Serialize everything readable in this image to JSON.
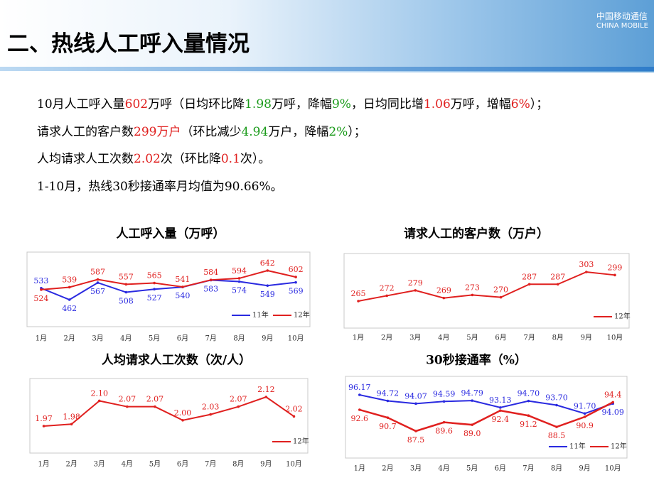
{
  "header": {
    "title": "二、热线人工呼入量情况",
    "logo_cn": "中国移动通信",
    "logo_en": "CHINA MOBILE"
  },
  "paragraphs": [
    {
      "segments": [
        {
          "text": "10月人工呼入量",
          "color": "#000000"
        },
        {
          "text": "602",
          "color": "#e0201f"
        },
        {
          "text": "万呼（日均环比降",
          "color": "#000000"
        },
        {
          "text": "1.98",
          "color": "#1a9a1a"
        },
        {
          "text": "万呼，降幅",
          "color": "#000000"
        },
        {
          "text": "9%",
          "color": "#1a9a1a"
        },
        {
          "text": "，日均同比增",
          "color": "#000000"
        },
        {
          "text": "1.06",
          "color": "#e0201f"
        },
        {
          "text": "万呼，增幅",
          "color": "#000000"
        },
        {
          "text": "6%",
          "color": "#e0201f"
        },
        {
          "text": "）；",
          "color": "#000000"
        }
      ]
    },
    {
      "segments": [
        {
          "text": "请求人工的客户数",
          "color": "#000000"
        },
        {
          "text": "299万户",
          "color": "#e0201f"
        },
        {
          "text": "（环比减少",
          "color": "#000000"
        },
        {
          "text": "4.94",
          "color": "#1a9a1a"
        },
        {
          "text": "万户，降幅",
          "color": "#000000"
        },
        {
          "text": "2%",
          "color": "#1a9a1a"
        },
        {
          "text": "）；",
          "color": "#000000"
        }
      ]
    },
    {
      "segments": [
        {
          "text": "人均请求人工次数",
          "color": "#000000"
        },
        {
          "text": "2.02",
          "color": "#e0201f"
        },
        {
          "text": "次（环比降",
          "color": "#000000"
        },
        {
          "text": "0.1",
          "color": "#e0201f"
        },
        {
          "text": "次）。",
          "color": "#000000"
        }
      ]
    },
    {
      "segments": [
        {
          "text": "1-10月，热线30秒接通率月均值为90.66%。",
          "color": "#000000"
        }
      ]
    }
  ],
  "chart_data": [
    {
      "type": "line",
      "title": "人工呼入量（万呼）",
      "legend": "lower right",
      "categories": [
        "1月",
        "2月",
        "3月",
        "4月",
        "5月",
        "6月",
        "7月",
        "8月",
        "9月",
        "10月"
      ],
      "series": [
        {
          "name": "11年",
          "color": "#2a2ae0",
          "values": [
            533,
            462,
            567,
            508,
            527,
            540,
            583,
            574,
            549,
            569
          ]
        },
        {
          "name": "12年",
          "color": "#e0201f",
          "values": [
            524,
            539,
            587,
            557,
            565,
            541,
            584,
            594,
            642,
            602
          ]
        }
      ]
    },
    {
      "type": "line",
      "title": "请求人工的客户数（万户）",
      "legend": "lower right",
      "categories": [
        "1月",
        "2月",
        "3月",
        "4月",
        "5月",
        "6月",
        "7月",
        "8月",
        "9月",
        "10月"
      ],
      "series": [
        {
          "name": "12年",
          "color": "#e0201f",
          "values": [
            265,
            272,
            279,
            269,
            273,
            270,
            287,
            287,
            303,
            299
          ]
        }
      ]
    },
    {
      "type": "line",
      "title": "人均请求人工次数（次/人）",
      "legend": "lower right",
      "categories": [
        "1月",
        "2月",
        "3月",
        "4月",
        "5月",
        "6月",
        "7月",
        "8月",
        "9月",
        "10月"
      ],
      "series": [
        {
          "name": "12年",
          "color": "#e0201f",
          "values": [
            1.97,
            1.98,
            2.1,
            2.07,
            2.07,
            2,
            2.03,
            2.07,
            2.12,
            2.02
          ],
          "value_labels": [
            "1.97",
            "1.98",
            "2.10",
            "2.07",
            "2.07",
            "2.00",
            "2.03",
            "2.07",
            "2.12",
            "2.02"
          ]
        }
      ]
    },
    {
      "type": "line",
      "title": "30秒接通率（%）",
      "legend": "lower right",
      "categories": [
        "1月",
        "2月",
        "3月",
        "4月",
        "5月",
        "6月",
        "7月",
        "8月",
        "9月",
        "10月"
      ],
      "series": [
        {
          "name": "11年",
          "color": "#2a2ae0",
          "values": [
            96.17,
            94.72,
            94.07,
            94.59,
            94.79,
            93.13,
            94.7,
            93.7,
            91.7,
            94.09
          ],
          "value_labels": [
            "96.17",
            "94.72",
            "94.07",
            "94.59",
            "94.79",
            "93.13",
            "94.70",
            "93.70",
            "91.70",
            "94.09"
          ]
        },
        {
          "name": "12年",
          "color": "#e0201f",
          "values": [
            92.6,
            90.7,
            87.5,
            89.6,
            89,
            92.4,
            91.2,
            88.5,
            90.9,
            94.4
          ],
          "value_labels": [
            "92.6",
            "90.7",
            "87.5",
            "89.6",
            "89.0",
            "92.4",
            "91.2",
            "88.5",
            "90.9",
            "94.4"
          ]
        }
      ]
    }
  ]
}
